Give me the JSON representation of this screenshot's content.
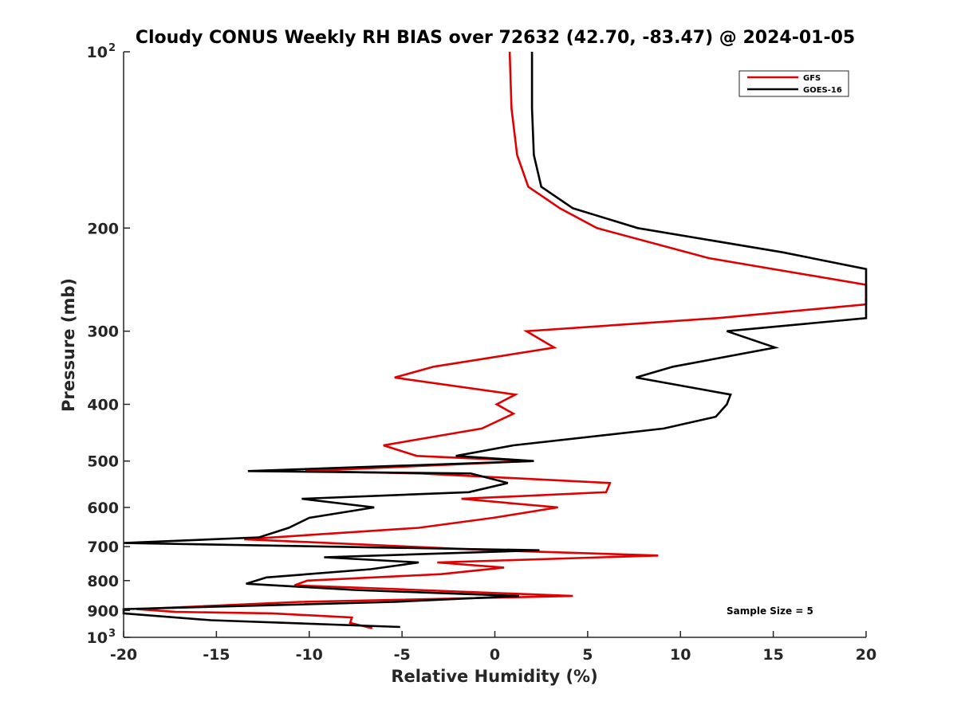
{
  "chart_data": {
    "type": "line",
    "title": "Cloudy CONUS Weekly RH BIAS over 72632 (42.70, -83.47) @ 2024-01-05",
    "xlabel": "Relative Humidity (%)",
    "ylabel": "Pressure (mb)",
    "xlim": [
      -20,
      20
    ],
    "ylim": [
      100,
      1000
    ],
    "yscale": "log",
    "y_reversed": true,
    "grid": false,
    "legend_position": "top-right",
    "x_ticks": [
      "-20",
      "-15",
      "-10",
      "-5",
      "0",
      "5",
      "10",
      "15",
      "20"
    ],
    "y_ticks": [
      {
        "value": 100,
        "base": "10",
        "exp": "2"
      },
      {
        "value": 200,
        "label": "200"
      },
      {
        "value": 300,
        "label": "300"
      },
      {
        "value": 400,
        "label": "400"
      },
      {
        "value": 500,
        "label": "500"
      },
      {
        "value": 600,
        "label": "600"
      },
      {
        "value": 700,
        "label": "700"
      },
      {
        "value": 800,
        "label": "800"
      },
      {
        "value": 900,
        "label": "900"
      },
      {
        "value": 1000,
        "base": "10",
        "exp": "3"
      }
    ],
    "annotation": "Sample Size = 5",
    "series": [
      {
        "name": "GFS",
        "color": "#e00000",
        "points": [
          [
            0.8,
            100
          ],
          [
            0.9,
            125
          ],
          [
            1.2,
            150
          ],
          [
            1.8,
            170
          ],
          [
            3.5,
            185
          ],
          [
            5.5,
            200
          ],
          [
            11.5,
            225
          ],
          [
            20,
            250
          ],
          [
            20,
            270
          ],
          [
            12,
            285
          ],
          [
            1.7,
            300
          ],
          [
            3.2,
            320
          ],
          [
            -3.3,
            345
          ],
          [
            -5.4,
            360
          ],
          [
            1.1,
            385
          ],
          [
            0.1,
            400
          ],
          [
            1.0,
            415
          ],
          [
            -0.7,
            440
          ],
          [
            -6.0,
            470
          ],
          [
            -4.2,
            490
          ],
          [
            2.0,
            500
          ],
          [
            -10.2,
            520
          ],
          [
            -4.0,
            525
          ],
          [
            6.2,
            545
          ],
          [
            6.0,
            565
          ],
          [
            -1.8,
            580
          ],
          [
            3.4,
            600
          ],
          [
            -0.1,
            625
          ],
          [
            -4.1,
            650
          ],
          [
            -13.5,
            680
          ],
          [
            -0.2,
            710
          ],
          [
            8.8,
            725
          ],
          [
            -3.1,
            745
          ],
          [
            0.5,
            760
          ],
          [
            -2.9,
            780
          ],
          [
            -10.1,
            800
          ],
          [
            -10.8,
            815
          ],
          [
            -4.2,
            830
          ],
          [
            4.2,
            850
          ],
          [
            -10.5,
            870
          ],
          [
            -19.3,
            895
          ],
          [
            -17.2,
            905
          ],
          [
            -12.0,
            910
          ],
          [
            -7.7,
            925
          ],
          [
            -7.8,
            945
          ],
          [
            -6.6,
            965
          ]
        ]
      },
      {
        "name": "GOES-16",
        "color": "#000000",
        "points": [
          [
            2.0,
            100
          ],
          [
            2.0,
            125
          ],
          [
            2.1,
            150
          ],
          [
            2.5,
            170
          ],
          [
            4.2,
            185
          ],
          [
            7.7,
            200
          ],
          [
            15.5,
            220
          ],
          [
            20,
            235
          ],
          [
            20,
            285
          ],
          [
            12.5,
            300
          ],
          [
            15.1,
            320
          ],
          [
            9.6,
            345
          ],
          [
            7.6,
            360
          ],
          [
            12.7,
            385
          ],
          [
            12.5,
            400
          ],
          [
            11.9,
            420
          ],
          [
            9.1,
            440
          ],
          [
            1.0,
            470
          ],
          [
            -2.1,
            490
          ],
          [
            2.1,
            500
          ],
          [
            -13.3,
            520
          ],
          [
            -1.3,
            525
          ],
          [
            0.7,
            545
          ],
          [
            -1.4,
            565
          ],
          [
            -10.4,
            580
          ],
          [
            -6.5,
            600
          ],
          [
            -10.0,
            625
          ],
          [
            -11.1,
            650
          ],
          [
            -12.7,
            675
          ],
          [
            -20,
            690
          ],
          [
            2.4,
            710
          ],
          [
            -9.2,
            730
          ],
          [
            -4.1,
            745
          ],
          [
            -6.7,
            765
          ],
          [
            -12.3,
            790
          ],
          [
            -13.4,
            810
          ],
          [
            -7.6,
            830
          ],
          [
            1.3,
            850
          ],
          [
            -5.4,
            870
          ],
          [
            -20,
            895
          ],
          [
            -20,
            910
          ],
          [
            -15.3,
            935
          ],
          [
            -5.1,
            960
          ]
        ]
      }
    ]
  }
}
